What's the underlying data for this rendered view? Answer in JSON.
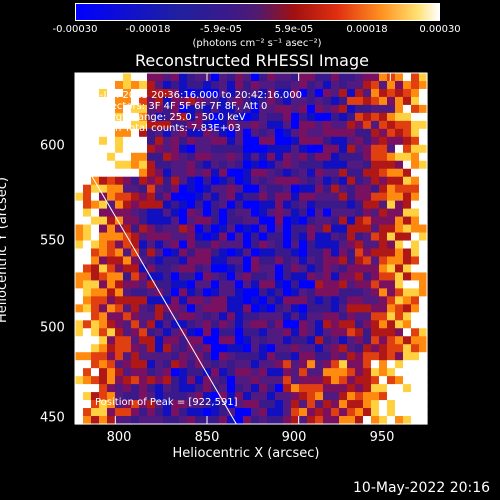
{
  "colorbar": {
    "ticks": [
      "-0.00030",
      "-0.00018",
      "-5.9e-05",
      "5.9e-05",
      "0.00018",
      "0.00030"
    ],
    "units": "(photons cm⁻² s⁻¹ asec⁻²)",
    "range": [
      -0.0003,
      0.0003
    ]
  },
  "info": {
    "time_range": "8-Jan-2013 20:36:16.000 to 20:42:16.000",
    "detectors": "Detectors: 3F 4F 5F 6F 7F 8F, Att 0",
    "energy_range": "Energy Range: 25.0 - 50.0 keV",
    "clean_counts": "Clean     Total counts: 7.83E+03",
    "peak": "Position of Peak = [922,591]"
  },
  "timestamp": "10-May-2022 20:16",
  "chart_data": {
    "type": "heatmap",
    "title": "Reconstructed RHESSI Image",
    "xlabel": "Heliocentric X (arcsec)",
    "ylabel": "Heliocentric Y (arcsec)",
    "xlim": [
      778,
      970
    ],
    "ylim": [
      448,
      623
    ],
    "xticks": [
      "800",
      "850",
      "900",
      "950"
    ],
    "yticks": [
      "600",
      "550",
      "500",
      "450"
    ],
    "xtick_values": [
      800,
      850,
      900,
      950
    ],
    "ytick_values": [
      600,
      550,
      500,
      450
    ],
    "colorscale": [
      "#0000ff",
      "#1010c0",
      "#3a1a8a",
      "#501a80",
      "#7a1060",
      "#b01818",
      "#e04010",
      "#ff8a10",
      "#ffd040",
      "#ffffff"
    ],
    "peak_position": [
      922,
      591
    ],
    "limb_line": [
      [
        778,
        586
      ],
      [
        866,
        448
      ]
    ]
  }
}
